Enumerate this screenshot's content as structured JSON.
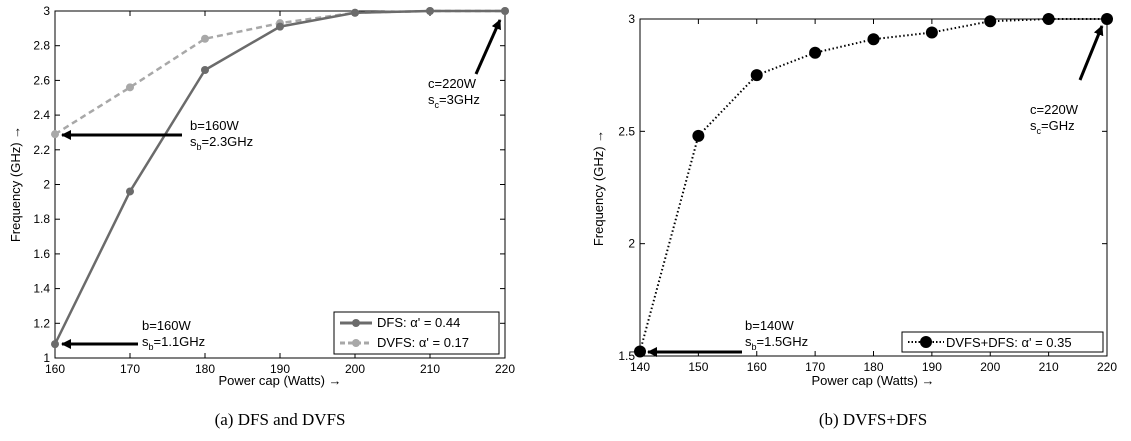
{
  "chart_data": [
    {
      "type": "line",
      "caption": "(a) DFS and DVFS",
      "xlabel": "Power cap (Watts) →",
      "ylabel": "Frequency (GHz) →",
      "xlim": [
        160,
        220
      ],
      "ylim": [
        1,
        3
      ],
      "xticks": [
        "160",
        "170",
        "180",
        "190",
        "200",
        "210",
        "220"
      ],
      "yticks": [
        "1",
        "1.2",
        "1.4",
        "1.6",
        "1.8",
        "2",
        "2.2",
        "2.4",
        "2.6",
        "2.8",
        "3"
      ],
      "x": [
        160,
        170,
        180,
        190,
        200,
        210,
        220
      ],
      "series": [
        {
          "name": "DFS: α' = 0.44",
          "values": [
            1.08,
            1.96,
            2.66,
            2.91,
            2.99,
            3.0,
            3.0
          ],
          "color": "#6b6b6b",
          "style": "solid"
        },
        {
          "name": "DVFS: α' = 0.17",
          "values": [
            2.29,
            2.56,
            2.84,
            2.93,
            2.99,
            3.0,
            3.0
          ],
          "color": "#a8a8a8",
          "style": "dashed"
        }
      ],
      "legend_position": "bottom-right",
      "annotations": [
        {
          "line1": "b=160W",
          "line2_pre": "s",
          "line2_sub": "b",
          "line2_post": "=2.3GHz"
        },
        {
          "line1": "b=160W",
          "line2_pre": "s",
          "line2_sub": "b",
          "line2_post": "=1.1GHz"
        },
        {
          "line1": "c=220W",
          "line2_pre": "s",
          "line2_sub": "c",
          "line2_post": "=3GHz"
        }
      ]
    },
    {
      "type": "line",
      "caption": "(b) DVFS+DFS",
      "xlabel": "Power cap (Watts) →",
      "ylabel": "Frequency (GHz) →",
      "xlim": [
        140,
        220
      ],
      "ylim": [
        1.5,
        3
      ],
      "xticks": [
        "140",
        "150",
        "160",
        "170",
        "180",
        "190",
        "200",
        "210",
        "220"
      ],
      "yticks": [
        "1.5",
        "2",
        "2.5",
        "3"
      ],
      "x": [
        140,
        150,
        160,
        170,
        180,
        190,
        200,
        210,
        220
      ],
      "series": [
        {
          "name": "DVFS+DFS: α' = 0.35",
          "values": [
            1.52,
            2.48,
            2.75,
            2.85,
            2.91,
            2.94,
            2.99,
            3.0,
            3.0
          ],
          "color": "#000000",
          "style": "dotted"
        }
      ],
      "legend_position": "bottom-right",
      "annotations": [
        {
          "line1": "b=140W",
          "line2_pre": "s",
          "line2_sub": "b",
          "line2_post": "=1.5GHz"
        },
        {
          "line1": "c=220W",
          "line2_pre": "s",
          "line2_sub": "c",
          "line2_post": "=GHz"
        }
      ]
    }
  ]
}
